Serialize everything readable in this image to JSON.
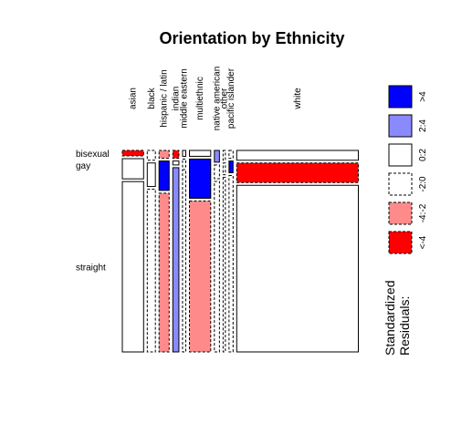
{
  "chart_data": {
    "type": "mosaic",
    "title": "Orientation by Ethnicity",
    "columns": [
      "asian",
      "black",
      "hispanic / latin",
      "indian",
      "middle eastern",
      "multiethnic",
      "native american",
      "other",
      "pacific islander",
      "white"
    ],
    "rows": [
      "bisexual",
      "gay",
      "straight"
    ],
    "column_shares": [
      0.105,
      0.04,
      0.05,
      0.03,
      0.016,
      0.105,
      0.025,
      0.009,
      0.02,
      0.6
    ],
    "cell_shares": [
      [
        0.028,
        0.103,
        0.869
      ],
      [
        0.05,
        0.12,
        0.83
      ],
      [
        0.04,
        0.15,
        0.81
      ],
      [
        0.04,
        0.02,
        0.94
      ],
      [
        0.03,
        0.04,
        0.93
      ],
      [
        0.03,
        0.2,
        0.77
      ],
      [
        0.06,
        0.07,
        0.87
      ],
      [
        0.05,
        0.06,
        0.89
      ],
      [
        0.04,
        0.06,
        0.9
      ],
      [
        0.05,
        0.1,
        0.85
      ]
    ],
    "residual_class": [
      [
        "neg_strong",
        "zero_pos",
        "zero_pos"
      ],
      [
        "zero_neg",
        "zero_pos",
        "zero_neg"
      ],
      [
        "neg_mid",
        "pos_strong",
        "neg_mid"
      ],
      [
        "neg_strong",
        "zero_pos",
        "pos_mid"
      ],
      [
        "zero_pos",
        "zero_neg",
        "zero_neg"
      ],
      [
        "zero_pos",
        "pos_strong",
        "neg_mid"
      ],
      [
        "pos_mid",
        "zero_neg",
        "zero_neg"
      ],
      [
        "zero_neg",
        "zero_neg",
        "zero_neg"
      ],
      [
        "zero_neg",
        "pos_strong",
        "zero_neg"
      ],
      [
        "zero_pos",
        "neg_strong",
        "zero_pos"
      ]
    ],
    "legend": {
      "title": "Standardized\nResiduals:",
      "entries": [
        {
          "label": ">4",
          "class": "pos_strong",
          "fill": "#0000FF",
          "dashed": false
        },
        {
          "label": "2:4",
          "class": "pos_mid",
          "fill": "#8A8AFF",
          "dashed": false
        },
        {
          "label": "0:2",
          "class": "zero_pos",
          "fill": "#FFFFFF",
          "dashed": false
        },
        {
          "label": "-2:0",
          "class": "zero_neg",
          "fill": "#FFFFFF",
          "dashed": true
        },
        {
          "label": "-4:-2",
          "class": "neg_mid",
          "fill": "#FF8A8A",
          "dashed": true
        },
        {
          "label": "<-4",
          "class": "neg_strong",
          "fill": "#FF0000",
          "dashed": true
        }
      ]
    }
  }
}
